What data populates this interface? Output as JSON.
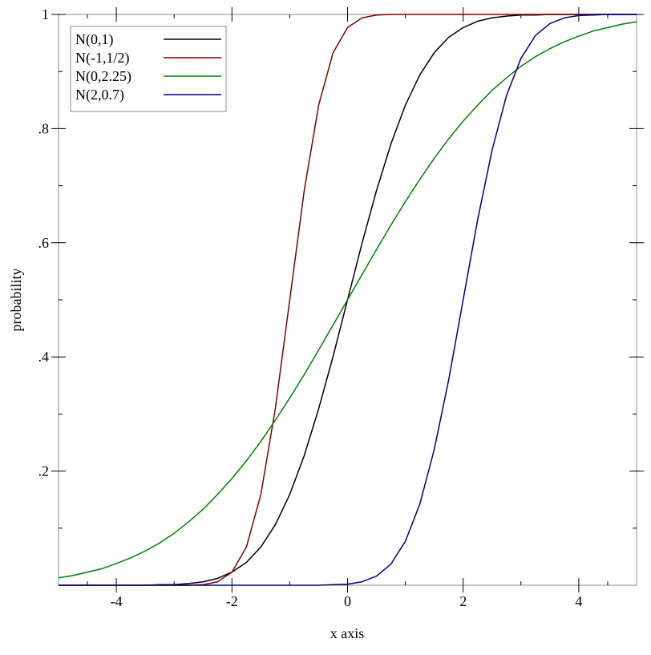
{
  "chart_data": {
    "type": "line",
    "x_label": "x axis",
    "y_label": "probability",
    "x": [
      -5,
      -4.75,
      -4.5,
      -4.25,
      -4,
      -3.75,
      -3.5,
      -3.25,
      -3,
      -2.75,
      -2.5,
      -2.25,
      -2,
      -1.75,
      -1.5,
      -1.25,
      -1,
      -0.75,
      -0.5,
      -0.25,
      0,
      0.25,
      0.5,
      0.75,
      1,
      1.25,
      1.5,
      1.75,
      2,
      2.25,
      2.5,
      2.75,
      3,
      3.25,
      3.5,
      3.75,
      4,
      4.25,
      4.5,
      4.75,
      5
    ],
    "series": [
      {
        "name": "N(0,1)",
        "color": "#000000",
        "values": [
          0,
          0,
          0,
          0,
          0,
          0,
          0,
          0.001,
          0.001,
          0.003,
          0.006,
          0.012,
          0.023,
          0.04,
          0.067,
          0.106,
          0.159,
          0.227,
          0.309,
          0.401,
          0.5,
          0.599,
          0.691,
          0.773,
          0.841,
          0.894,
          0.933,
          0.96,
          0.977,
          0.988,
          0.994,
          0.997,
          0.999,
          0.999,
          1,
          1,
          1,
          1,
          1,
          1,
          1
        ]
      },
      {
        "name": "N(-1,1/2)",
        "color": "#800000",
        "values": [
          0,
          0,
          0,
          0,
          0,
          0,
          0,
          0,
          0,
          0,
          0.001,
          0.006,
          0.023,
          0.067,
          0.159,
          0.309,
          0.5,
          0.691,
          0.841,
          0.933,
          0.977,
          0.994,
          0.999,
          1,
          1,
          1,
          1,
          1,
          1,
          1,
          1,
          1,
          1,
          1,
          1,
          1,
          1,
          1,
          1,
          1,
          1
        ]
      },
      {
        "name": "N(0,2.25)",
        "color": "#008000",
        "values": [
          0.013,
          0.017,
          0.023,
          0.029,
          0.038,
          0.048,
          0.06,
          0.074,
          0.091,
          0.111,
          0.133,
          0.159,
          0.187,
          0.218,
          0.252,
          0.289,
          0.328,
          0.369,
          0.412,
          0.456,
          0.5,
          0.544,
          0.588,
          0.631,
          0.672,
          0.711,
          0.748,
          0.782,
          0.813,
          0.841,
          0.867,
          0.889,
          0.909,
          0.926,
          0.94,
          0.952,
          0.962,
          0.971,
          0.977,
          0.983,
          0.987
        ]
      },
      {
        "name": "N(2,0.7)",
        "color": "#000080",
        "values": [
          0,
          0,
          0,
          0,
          0,
          0,
          0,
          0,
          0,
          0,
          0,
          0,
          0,
          0,
          0,
          0,
          0,
          0,
          0,
          0.001,
          0.002,
          0.006,
          0.016,
          0.037,
          0.077,
          0.142,
          0.238,
          0.36,
          0.5,
          0.64,
          0.762,
          0.858,
          0.923,
          0.963,
          0.984,
          0.994,
          0.998,
          0.999,
          1,
          1,
          1
        ]
      }
    ],
    "xlim": [
      -5,
      5
    ],
    "ylim": [
      0,
      1
    ],
    "xticks": [
      -4,
      -2,
      0,
      2,
      4
    ],
    "yticks": [
      {
        "value": 0.2,
        "label": ".2"
      },
      {
        "value": 0.4,
        "label": ".4"
      },
      {
        "value": 0.6,
        "label": ".6"
      },
      {
        "value": 0.8,
        "label": ".8"
      },
      1
    ],
    "legend": "top-left"
  }
}
